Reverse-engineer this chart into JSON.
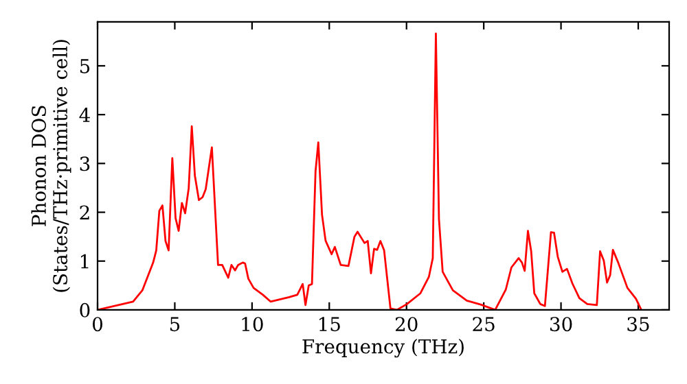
{
  "chart_data": {
    "type": "line",
    "xlabel": "Frequency (THz)",
    "ylabel": "Phonon DOS\n(States/THz·primitive cell)",
    "xlim": [
      0,
      37
    ],
    "ylim": [
      0,
      5.9
    ],
    "xticks": [
      0,
      5,
      10,
      15,
      20,
      25,
      30,
      35
    ],
    "yticks": [
      0,
      1,
      2,
      3,
      4,
      5
    ],
    "grid": false,
    "legend": false,
    "marker": "none",
    "line_style": "solid",
    "series": [
      {
        "color": "#ff0000",
        "x": [
          0,
          2.3,
          2.9,
          3.6,
          3.8,
          4.0,
          4.2,
          4.4,
          4.6,
          4.84,
          5.05,
          5.25,
          5.46,
          5.67,
          5.9,
          6.1,
          6.3,
          6.56,
          6.8,
          7.0,
          7.4,
          7.8,
          8.07,
          8.46,
          8.67,
          8.9,
          9.1,
          9.4,
          9.55,
          9.76,
          10.1,
          10.7,
          11.2,
          12.4,
          12.93,
          13.28,
          13.46,
          13.67,
          13.88,
          14.11,
          14.29,
          14.53,
          14.76,
          15.15,
          15.36,
          15.74,
          16.24,
          16.63,
          16.83,
          17.28,
          17.49,
          17.7,
          17.9,
          18.1,
          18.31,
          18.55,
          18.96,
          19.38,
          20.03,
          20.9,
          21.45,
          21.7,
          21.9,
          22.1,
          22.34,
          23.0,
          23.9,
          24.8,
          25.74,
          26.43,
          26.79,
          27.26,
          27.47,
          27.65,
          27.86,
          28.07,
          28.27,
          28.66,
          28.96,
          29.35,
          29.55,
          29.79,
          30.09,
          30.39,
          30.74,
          31.19,
          31.7,
          32.32,
          32.53,
          32.77,
          32.98,
          33.18,
          33.36,
          33.7,
          34.3,
          34.85,
          35.2
        ],
        "values": [
          0,
          0.17,
          0.4,
          0.97,
          1.22,
          2.03,
          2.14,
          1.41,
          1.22,
          3.11,
          1.88,
          1.62,
          2.19,
          1.98,
          2.49,
          3.76,
          2.75,
          2.25,
          2.31,
          2.47,
          3.33,
          0.92,
          0.92,
          0.66,
          0.92,
          0.81,
          0.92,
          0.97,
          0.95,
          0.64,
          0.45,
          0.31,
          0.17,
          0.26,
          0.31,
          0.53,
          0.1,
          0.5,
          0.53,
          2.84,
          3.43,
          1.95,
          1.42,
          1.14,
          1.29,
          0.92,
          0.9,
          1.5,
          1.6,
          1.37,
          1.41,
          0.75,
          1.25,
          1.23,
          1.41,
          1.22,
          0.03,
          0,
          0.12,
          0.34,
          0.68,
          1.06,
          5.66,
          1.86,
          0.78,
          0.4,
          0.19,
          0.11,
          0,
          0.42,
          0.87,
          1.06,
          0.97,
          0.8,
          1.62,
          1.2,
          0.34,
          0.12,
          0.08,
          1.59,
          1.58,
          1.09,
          0.78,
          0.84,
          0.54,
          0.24,
          0.12,
          0.1,
          1.2,
          1.01,
          0.56,
          0.71,
          1.23,
          0.97,
          0.45,
          0.23,
          0
        ]
      }
    ]
  }
}
